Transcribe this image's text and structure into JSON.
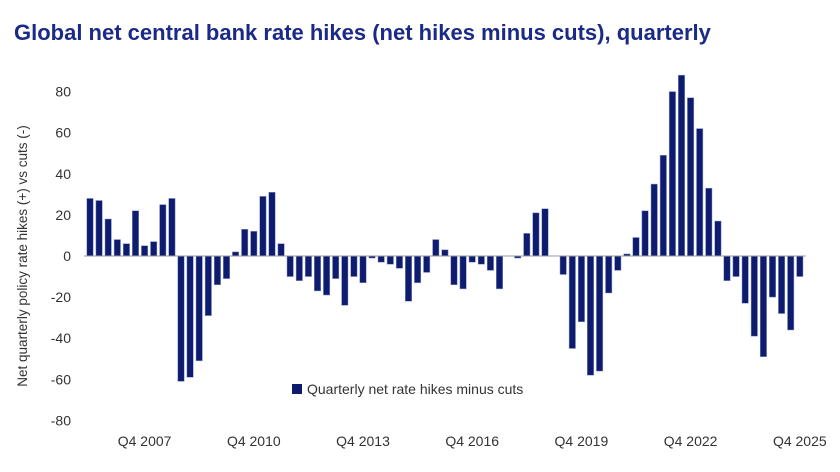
{
  "chart_data": {
    "type": "bar",
    "title": "Global net central bank rate hikes (net hikes minus cuts), quarterly",
    "ylabel": "Net quarterly policy rate hikes (+) vs cuts (-)",
    "xlabel": "",
    "ylim": [
      -80,
      90
    ],
    "yticks": [
      80,
      60,
      40,
      20,
      0,
      -20,
      -40,
      -60,
      -80
    ],
    "xtick_labels": [
      "Q4 2007",
      "Q4 2010",
      "Q4 2013",
      "Q4 2016",
      "Q4 2019",
      "Q4 2022",
      "Q4 2025"
    ],
    "legend": {
      "placement": "bottom-center",
      "entries": [
        "Quarterly net rate hikes minus cuts"
      ]
    },
    "grid": false,
    "bar_color": "#0e1c6f",
    "title_color": "#1b2a86",
    "categories": [
      "Q2 2006",
      "Q3 2006",
      "Q4 2006",
      "Q1 2007",
      "Q2 2007",
      "Q3 2007",
      "Q4 2007",
      "Q1 2008",
      "Q2 2008",
      "Q3 2008",
      "Q4 2008",
      "Q1 2009",
      "Q2 2009",
      "Q3 2009",
      "Q4 2009",
      "Q1 2010",
      "Q2 2010",
      "Q3 2010",
      "Q4 2010",
      "Q1 2011",
      "Q2 2011",
      "Q3 2011",
      "Q4 2011",
      "Q1 2012",
      "Q2 2012",
      "Q3 2012",
      "Q4 2012",
      "Q1 2013",
      "Q2 2013",
      "Q3 2013",
      "Q4 2013",
      "Q1 2014",
      "Q2 2014",
      "Q3 2014",
      "Q4 2014",
      "Q1 2015",
      "Q2 2015",
      "Q3 2015",
      "Q4 2015",
      "Q1 2016",
      "Q2 2016",
      "Q3 2016",
      "Q4 2016",
      "Q1 2017",
      "Q2 2017",
      "Q3 2017",
      "Q4 2017",
      "Q1 2018",
      "Q2 2018",
      "Q3 2018",
      "Q4 2018",
      "Q1 2019",
      "Q2 2019",
      "Q3 2019",
      "Q4 2019",
      "Q1 2020",
      "Q2 2020",
      "Q3 2020",
      "Q4 2020",
      "Q1 2021",
      "Q2 2021",
      "Q3 2021",
      "Q4 2021",
      "Q1 2022",
      "Q2 2022",
      "Q3 2022",
      "Q4 2022",
      "Q1 2023",
      "Q2 2023",
      "Q3 2023",
      "Q4 2023",
      "Q1 2024",
      "Q2 2024",
      "Q3 2024",
      "Q4 2024",
      "Q1 2025",
      "Q2 2025",
      "Q3 2025",
      "Q4 2025"
    ],
    "values": [
      28,
      27,
      18,
      8,
      6,
      22,
      5,
      7,
      25,
      28,
      -61,
      -59,
      -51,
      -29,
      -14,
      -11,
      2,
      13,
      12,
      29,
      31,
      6,
      -10,
      -12,
      -10,
      -17,
      -19,
      -11,
      -24,
      -10,
      -13,
      -1,
      -3,
      -4,
      -6,
      -22,
      -13,
      -8,
      8,
      3,
      -14,
      -16,
      -3,
      -4,
      -7,
      -16,
      0,
      -1,
      11,
      21,
      23,
      0,
      -9,
      -45,
      -32,
      -58,
      -56,
      -18,
      -7,
      1,
      9,
      22,
      35,
      49,
      80,
      88,
      77,
      62,
      33,
      17,
      -12,
      -10,
      -23,
      -39,
      -49,
      -20,
      -28,
      -36,
      -10
    ]
  }
}
